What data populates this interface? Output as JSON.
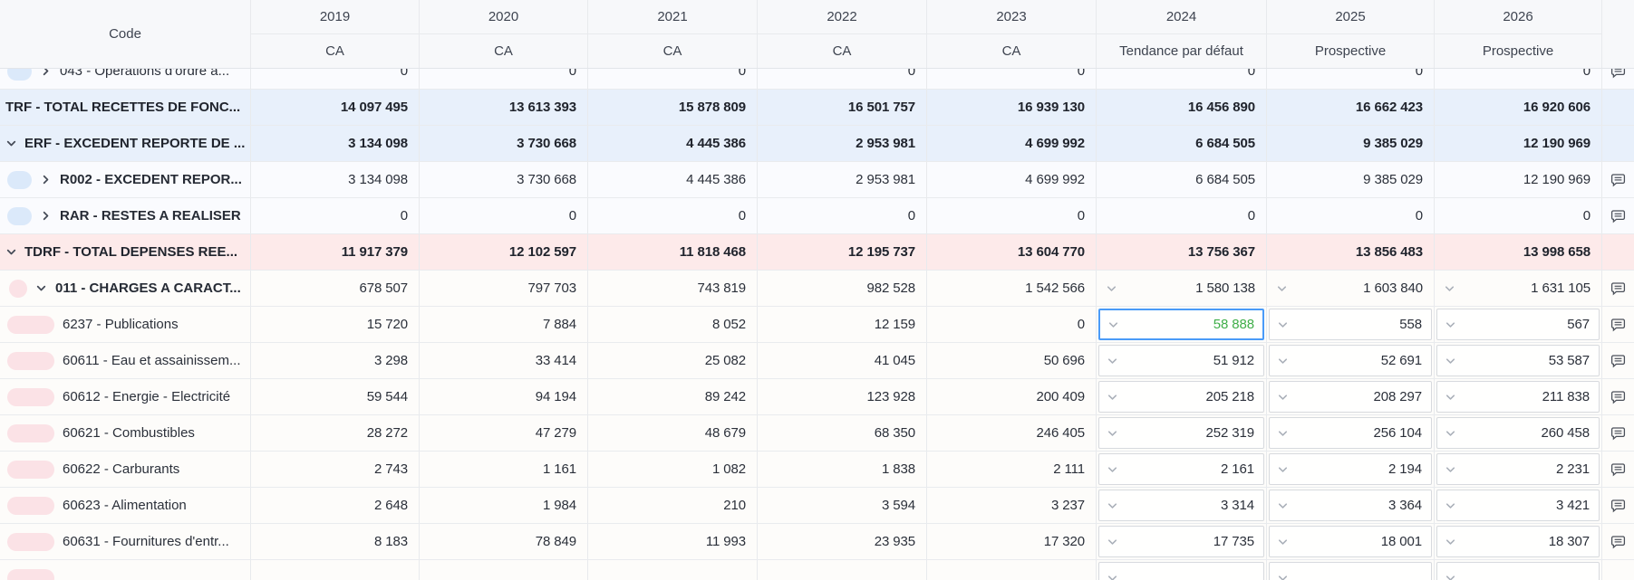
{
  "header": {
    "code_label": "Code"
  },
  "columns": [
    {
      "year": "2019",
      "subtitle": "CA"
    },
    {
      "year": "2020",
      "subtitle": "CA"
    },
    {
      "year": "2021",
      "subtitle": "CA"
    },
    {
      "year": "2022",
      "subtitle": "CA"
    },
    {
      "year": "2023",
      "subtitle": "CA"
    },
    {
      "year": "2024",
      "subtitle": "Tendance par défaut"
    },
    {
      "year": "2025",
      "subtitle": "Prospective"
    },
    {
      "year": "2026",
      "subtitle": "Prospective"
    }
  ],
  "icons": {
    "row_expand_collapsed": "chevron-right-icon",
    "row_expand_expanded": "chevron-down-icon",
    "value_dropdown": "chevron-down-icon",
    "comments": "comment-icon"
  },
  "colors": {
    "section_blue_row": "#e8f0fb",
    "section_blue_child_row": "#fafbfe",
    "section_pink_row": "#fdeaea",
    "section_pink_child_row": "#fdfcfa",
    "pill_blue": "#dbe9fa",
    "pill_pink": "#fbe2e6",
    "selected_cell_border": "#4a9bf8",
    "edited_value_green": "#3fae49"
  },
  "selected_cell": {
    "row_label": "6237 - Publications",
    "column_year": "2024",
    "value": "58 888"
  },
  "rows": [
    {
      "label": "043 - Opérations d'ordre a...",
      "section": "blue",
      "kind": "child",
      "pill": "pill",
      "expander": "collapsed",
      "partial": "top",
      "values": [
        "0",
        "0",
        "0",
        "0",
        "0",
        "0",
        "0",
        "0"
      ],
      "dropdown_cols": [],
      "boxed_cols": [],
      "comment": true
    },
    {
      "label": "TRF - TOTAL RECETTES DE FONC...",
      "section": "blue",
      "kind": "total",
      "pill": "none",
      "expander": "none",
      "values": [
        "14 097 495",
        "13 613 393",
        "15 878 809",
        "16 501 757",
        "16 939 130",
        "16 456 890",
        "16 662 423",
        "16 920 606"
      ],
      "dropdown_cols": [],
      "boxed_cols": [],
      "comment": false
    },
    {
      "label": "ERF - EXCEDENT REPORTE DE ...",
      "section": "blue",
      "kind": "total",
      "pill": "none",
      "expander": "expanded",
      "values": [
        "3 134 098",
        "3 730 668",
        "4 445 386",
        "2 953 981",
        "4 699 992",
        "6 684 505",
        "9 385 029",
        "12 190 969"
      ],
      "dropdown_cols": [],
      "boxed_cols": [],
      "comment": false
    },
    {
      "label": "R002 - EXCEDENT REPOR...",
      "section": "blue",
      "kind": "parent",
      "pill": "pill",
      "expander": "collapsed",
      "values": [
        "3 134 098",
        "3 730 668",
        "4 445 386",
        "2 953 981",
        "4 699 992",
        "6 684 505",
        "9 385 029",
        "12 190 969"
      ],
      "dropdown_cols": [],
      "boxed_cols": [],
      "comment": true
    },
    {
      "label": "RAR - RESTES A REALISER",
      "section": "blue",
      "kind": "parent",
      "pill": "pill",
      "expander": "collapsed",
      "values": [
        "0",
        "0",
        "0",
        "0",
        "0",
        "0",
        "0",
        "0"
      ],
      "dropdown_cols": [],
      "boxed_cols": [],
      "comment": true
    },
    {
      "label": "TDRF - TOTAL DEPENSES REE...",
      "section": "pink",
      "kind": "total",
      "pill": "none",
      "expander": "expanded",
      "values": [
        "11 917 379",
        "12 102 597",
        "11 818 468",
        "12 195 737",
        "13 604 770",
        "13 756 367",
        "13 856 483",
        "13 998 658"
      ],
      "dropdown_cols": [],
      "boxed_cols": [],
      "comment": false
    },
    {
      "label": "011 - CHARGES A CARACT...",
      "section": "pink",
      "kind": "parent",
      "pill": "dot",
      "expander": "expanded",
      "values": [
        "678 507",
        "797 703",
        "743 819",
        "982 528",
        "1 542 566",
        "1 580 138",
        "1 603 840",
        "1 631 105"
      ],
      "dropdown_cols": [
        5,
        6,
        7
      ],
      "boxed_cols": [],
      "comment": true
    },
    {
      "label": "6237 - Publications",
      "section": "pink",
      "kind": "child",
      "pill": "pill",
      "expander": "none",
      "values": [
        "15 720",
        "7 884",
        "8 052",
        "12 159",
        "0",
        "58 888",
        "558",
        "567"
      ],
      "dropdown_cols": [
        5,
        6,
        7
      ],
      "boxed_cols": [
        5,
        6,
        7
      ],
      "selected_col": 5,
      "comment": true
    },
    {
      "label": "60611 - Eau et assainissem...",
      "section": "pink",
      "kind": "child",
      "pill": "pill",
      "expander": "none",
      "values": [
        "3 298",
        "33 414",
        "25 082",
        "41 045",
        "50 696",
        "51 912",
        "52 691",
        "53 587"
      ],
      "dropdown_cols": [
        5,
        6,
        7
      ],
      "boxed_cols": [
        5,
        6,
        7
      ],
      "comment": true
    },
    {
      "label": "60612 - Energie - Electricité",
      "section": "pink",
      "kind": "child",
      "pill": "pill",
      "expander": "none",
      "values": [
        "59 544",
        "94 194",
        "89 242",
        "123 928",
        "200 409",
        "205 218",
        "208 297",
        "211 838"
      ],
      "dropdown_cols": [
        5,
        6,
        7
      ],
      "boxed_cols": [
        5,
        6,
        7
      ],
      "comment": true
    },
    {
      "label": "60621 - Combustibles",
      "section": "pink",
      "kind": "child",
      "pill": "pill",
      "expander": "none",
      "values": [
        "28 272",
        "47 279",
        "48 679",
        "68 350",
        "246 405",
        "252 319",
        "256 104",
        "260 458"
      ],
      "dropdown_cols": [
        5,
        6,
        7
      ],
      "boxed_cols": [
        5,
        6,
        7
      ],
      "comment": true
    },
    {
      "label": "60622 - Carburants",
      "section": "pink",
      "kind": "child",
      "pill": "pill",
      "expander": "none",
      "values": [
        "2 743",
        "1 161",
        "1 082",
        "1 838",
        "2 111",
        "2 161",
        "2 194",
        "2 231"
      ],
      "dropdown_cols": [
        5,
        6,
        7
      ],
      "boxed_cols": [
        5,
        6,
        7
      ],
      "comment": true
    },
    {
      "label": "60623 - Alimentation",
      "section": "pink",
      "kind": "child",
      "pill": "pill",
      "expander": "none",
      "values": [
        "2 648",
        "1 984",
        "210",
        "3 594",
        "3 237",
        "3 314",
        "3 364",
        "3 421"
      ],
      "dropdown_cols": [
        5,
        6,
        7
      ],
      "boxed_cols": [
        5,
        6,
        7
      ],
      "comment": true
    },
    {
      "label": "60631 - Fournitures d'entr...",
      "section": "pink",
      "kind": "child",
      "pill": "pill",
      "expander": "none",
      "values": [
        "8 183",
        "78 849",
        "11 993",
        "23 935",
        "17 320",
        "17 735",
        "18 001",
        "18 307"
      ],
      "dropdown_cols": [
        5,
        6,
        7
      ],
      "boxed_cols": [
        5,
        6,
        7
      ],
      "comment": true
    },
    {
      "label": "",
      "section": "pink",
      "kind": "child",
      "pill": "pill",
      "expander": "none",
      "partial": "bottom",
      "values": [
        "",
        "",
        "",
        "",
        "",
        "",
        "",
        ""
      ],
      "dropdown_cols": [
        5,
        6,
        7
      ],
      "boxed_cols": [
        5,
        6,
        7
      ],
      "comment": false
    }
  ]
}
